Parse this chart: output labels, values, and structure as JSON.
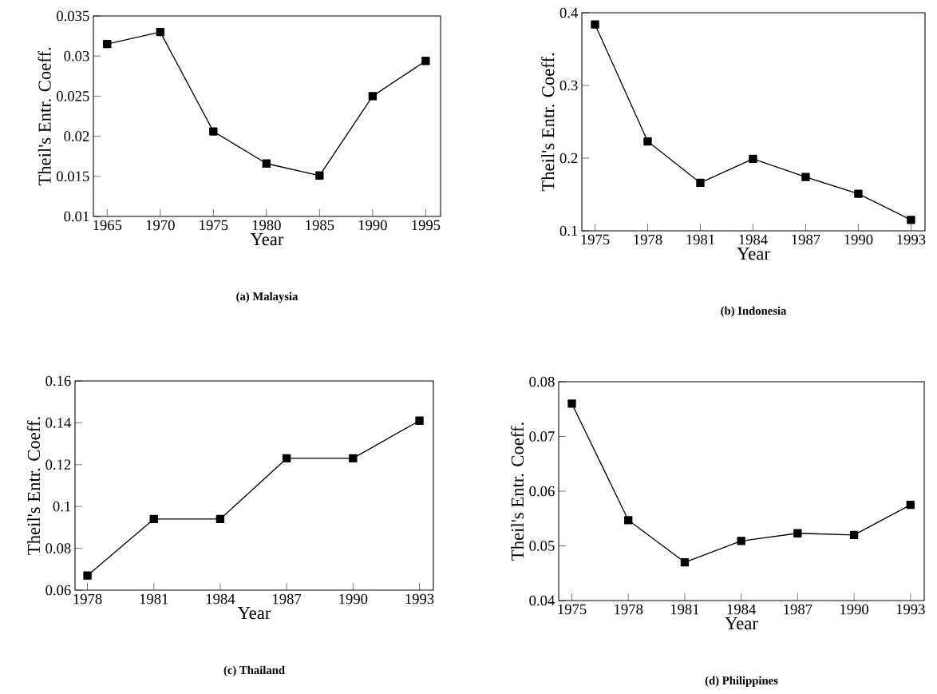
{
  "chart_data": [
    {
      "type": "line",
      "title": "(a) Malaysia",
      "xlabel": "Year",
      "ylabel": "Theil's Entr. Coeff.",
      "x": [
        1965,
        1970,
        1975,
        1980,
        1985,
        1990,
        1995
      ],
      "series": [
        {
          "color": "#000000",
          "values": [
            0.0315,
            0.033,
            0.0206,
            0.0166,
            0.0151,
            0.025,
            0.0294
          ]
        }
      ],
      "xlim": [
        1963.7,
        1996.4
      ],
      "xticks": [
        1965,
        1970,
        1975,
        1980,
        1985,
        1990,
        1995
      ],
      "ylim": [
        0.01,
        0.035
      ],
      "yticks": [
        0.01,
        0.015,
        0.02,
        0.025,
        0.03,
        0.035
      ],
      "marker": "square",
      "line_style": "solid",
      "grid": false
    },
    {
      "type": "line",
      "title": "(b) Indonesia",
      "xlabel": "Year",
      "ylabel": "Theil's Entr. Coeff.",
      "x": [
        1975,
        1978,
        1981,
        1984,
        1987,
        1990,
        1993
      ],
      "series": [
        {
          "color": "#000000",
          "values": [
            0.384,
            0.223,
            0.166,
            0.199,
            0.174,
            0.151,
            0.115
          ]
        }
      ],
      "xlim": [
        1974.25,
        1993.8
      ],
      "xticks": [
        1975,
        1978,
        1981,
        1984,
        1987,
        1990,
        1993
      ],
      "ylim": [
        0.1,
        0.4
      ],
      "yticks": [
        0.1,
        0.2,
        0.3,
        0.4
      ],
      "marker": "square",
      "line_style": "solid",
      "grid": false
    },
    {
      "type": "line",
      "title": "(c) Thailand",
      "xlabel": "Year",
      "ylabel": "Theil's Entr. Coeff.",
      "x": [
        1978,
        1981,
        1984,
        1987,
        1990,
        1993
      ],
      "series": [
        {
          "color": "#000000",
          "values": [
            0.067,
            0.094,
            0.094,
            0.123,
            0.123,
            0.141
          ]
        }
      ],
      "xlim": [
        1977.44,
        1993.63
      ],
      "xticks": [
        1978,
        1981,
        1984,
        1987,
        1990,
        1993
      ],
      "ylim": [
        0.06,
        0.16
      ],
      "yticks": [
        0.06,
        0.08,
        0.1,
        0.12,
        0.14,
        0.16
      ],
      "marker": "square",
      "line_style": "solid",
      "grid": false
    },
    {
      "type": "line",
      "title": "(d) Philippines",
      "xlabel": "Year",
      "ylabel": "Theil's Entr. Coeff.",
      "x": [
        1975,
        1978,
        1981,
        1984,
        1987,
        1990,
        1993
      ],
      "series": [
        {
          "color": "#000000",
          "values": [
            0.076,
            0.0547,
            0.047,
            0.0509,
            0.0523,
            0.052,
            0.0575
          ]
        }
      ],
      "xlim": [
        1974.3,
        1993.73
      ],
      "xticks": [
        1975,
        1978,
        1981,
        1984,
        1987,
        1990,
        1993
      ],
      "ylim": [
        0.04,
        0.08
      ],
      "yticks": [
        0.04,
        0.05,
        0.06,
        0.07,
        0.08
      ],
      "marker": "square",
      "line_style": "solid",
      "grid": false
    }
  ]
}
